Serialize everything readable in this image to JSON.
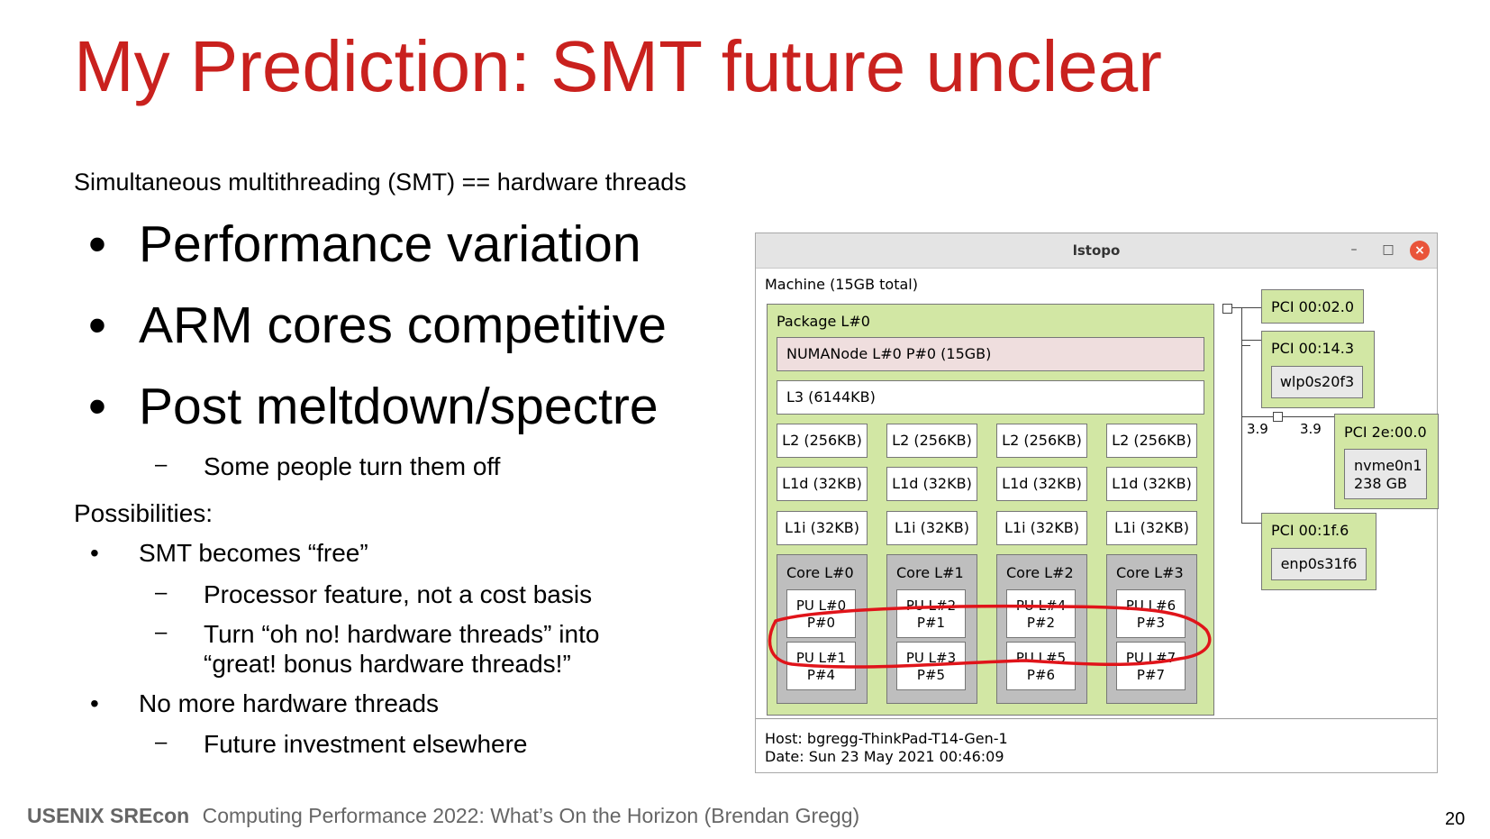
{
  "slide": {
    "title": "My Prediction: SMT future unclear",
    "subtitle": "Simultaneous multithreading (SMT) == hardware threads",
    "bullets": [
      {
        "bullet": "•",
        "text": "Performance variation"
      },
      {
        "bullet": "•",
        "text": "ARM cores competitive"
      },
      {
        "bullet": "•",
        "text": "Post meltdown/spectre"
      }
    ],
    "sub1": {
      "dash": "–",
      "text": "Some people turn them off"
    },
    "possibilities_heading": "Possibilities:",
    "possibilities": [
      {
        "bullet": "•",
        "text": "SMT becomes “free”"
      },
      {
        "dash": "–",
        "text": "Processor feature, not a cost basis"
      },
      {
        "dash": "–",
        "text": "Turn “oh no! hardware threads” into",
        "text2": "“great! bonus hardware threads!”"
      },
      {
        "bullet": "•",
        "text": "No more hardware threads"
      },
      {
        "dash": "–",
        "text": "Future investment elsewhere"
      }
    ],
    "footer": {
      "brand": "USENIX SREcon",
      "text": "Computing Performance 2022: What’s On the Horizon (Brendan Gregg)"
    },
    "page_number": "20",
    "colors": {
      "title": "#c9211e",
      "annotation": "#e0141a",
      "package": "#d2e7a4",
      "core": "#bebebe",
      "numa": "#efdede"
    }
  },
  "lstopo": {
    "window_title": "lstopo",
    "minimize": "–",
    "maximize": "□",
    "close": "×",
    "machine": "Machine (15GB total)",
    "package": "Package L#0",
    "numa": "NUMANode L#0 P#0 (15GB)",
    "l3": "L3 (6144KB)",
    "l2": [
      "L2 (256KB)",
      "L2 (256KB)",
      "L2 (256KB)",
      "L2 (256KB)"
    ],
    "l1d": [
      "L1d (32KB)",
      "L1d (32KB)",
      "L1d (32KB)",
      "L1d (32KB)"
    ],
    "l1i": [
      "L1i (32KB)",
      "L1i (32KB)",
      "L1i (32KB)",
      "L1i (32KB)"
    ],
    "cores": [
      {
        "label": "Core L#0",
        "pu": [
          [
            "PU L#0",
            "P#0"
          ],
          [
            "PU L#1",
            "P#4"
          ]
        ]
      },
      {
        "label": "Core L#1",
        "pu": [
          [
            "PU L#2",
            "P#1"
          ],
          [
            "PU L#3",
            "P#5"
          ]
        ]
      },
      {
        "label": "Core L#2",
        "pu": [
          [
            "PU L#4",
            "P#2"
          ],
          [
            "PU L#5",
            "P#6"
          ]
        ]
      },
      {
        "label": "Core L#3",
        "pu": [
          [
            "PU L#6",
            "P#3"
          ],
          [
            "PU L#7",
            "P#7"
          ]
        ]
      }
    ],
    "pci": [
      {
        "label": "PCI 00:02.0"
      },
      {
        "label": "PCI 00:14.3",
        "device": "wlp0s20f3"
      },
      {
        "label": "PCI 2e:00.0",
        "device": "nvme0n1",
        "device2": "238 GB",
        "bw_left": "3.9",
        "bw_right": "3.9"
      },
      {
        "label": "PCI 00:1f.6",
        "device": "enp0s31f6"
      }
    ],
    "host": "Host: bgregg-ThinkPad-T14-Gen-1",
    "date": "Date: Sun 23 May 2021 00:46:09"
  }
}
